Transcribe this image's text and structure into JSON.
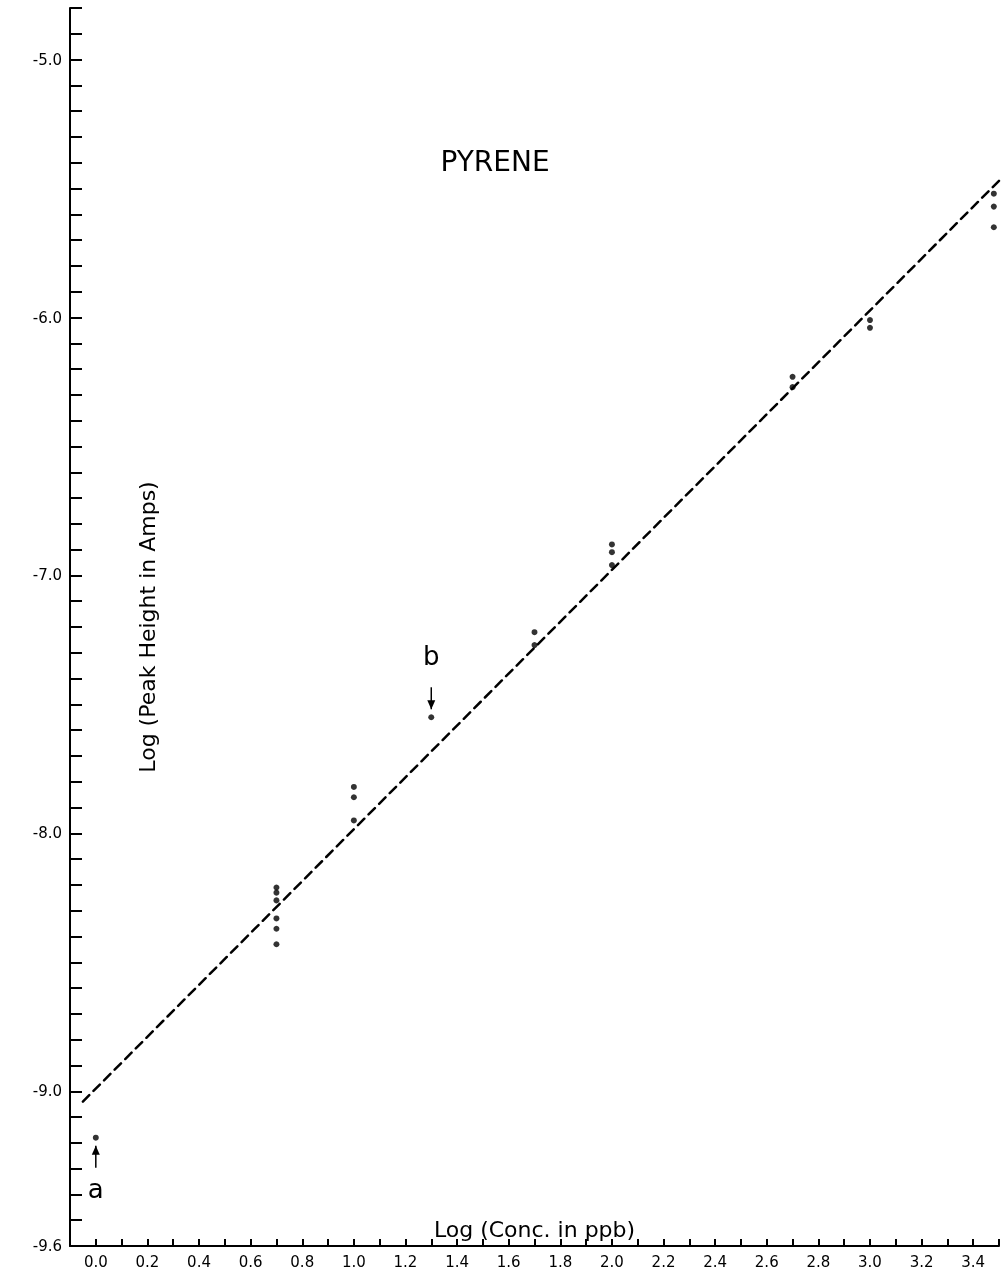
{
  "chart_data": {
    "type": "scatter",
    "title": "PYRENE",
    "xlabel": "Log (Conc. in ppb)",
    "ylabel": "Log (Peak Height in Amps)",
    "xlim": [
      -0.1,
      3.5
    ],
    "ylim": [
      -9.6,
      -4.8
    ],
    "xticks": [
      {
        "value": 0,
        "label": "0.0"
      },
      {
        "value": 0.1,
        "label": null
      },
      {
        "value": 0.2,
        "label": "0.2"
      },
      {
        "value": 0.3,
        "label": null
      },
      {
        "value": 0.4,
        "label": "0.4"
      },
      {
        "value": 0.5,
        "label": null
      },
      {
        "value": 0.6,
        "label": "0.6"
      },
      {
        "value": 0.7,
        "label": null
      },
      {
        "value": 0.8,
        "label": "0.8"
      },
      {
        "value": 0.9,
        "label": null
      },
      {
        "value": 1,
        "label": "1.0"
      },
      {
        "value": 1.1,
        "label": null
      },
      {
        "value": 1.2,
        "label": "1.2"
      },
      {
        "value": 1.3,
        "label": null
      },
      {
        "value": 1.4,
        "label": "1.4"
      },
      {
        "value": 1.5,
        "label": null
      },
      {
        "value": 1.6,
        "label": "1.6"
      },
      {
        "value": 1.7,
        "label": null
      },
      {
        "value": 1.8,
        "label": "1.8"
      },
      {
        "value": 1.9,
        "label": null
      },
      {
        "value": 2,
        "label": "2.0"
      },
      {
        "value": 2.1,
        "label": null
      },
      {
        "value": 2.2,
        "label": "2.2"
      },
      {
        "value": 2.3,
        "label": null
      },
      {
        "value": 2.4,
        "label": "2.4"
      },
      {
        "value": 2.5,
        "label": null
      },
      {
        "value": 2.6,
        "label": "2.6"
      },
      {
        "value": 2.7,
        "label": null
      },
      {
        "value": 2.8,
        "label": "2.8"
      },
      {
        "value": 2.9,
        "label": null
      },
      {
        "value": 3,
        "label": "3.0"
      },
      {
        "value": 3.1,
        "label": null
      },
      {
        "value": 3.2,
        "label": "3.2"
      },
      {
        "value": 3.3,
        "label": null
      },
      {
        "value": 3.4,
        "label": "3.4"
      },
      {
        "value": 3.5,
        "label": null
      }
    ],
    "yticks": [
      {
        "value": -9.6,
        "label": "-9.6"
      },
      {
        "value": -9.5,
        "label": null
      },
      {
        "value": -9.4,
        "label": null
      },
      {
        "value": -9.3,
        "label": null
      },
      {
        "value": -9.2,
        "label": null
      },
      {
        "value": -9.1,
        "label": null
      },
      {
        "value": -9,
        "label": "-9.0"
      },
      {
        "value": -8.9,
        "label": null
      },
      {
        "value": -8.8,
        "label": null
      },
      {
        "value": -8.7,
        "label": null
      },
      {
        "value": -8.6,
        "label": null
      },
      {
        "value": -8.5,
        "label": null
      },
      {
        "value": -8.4,
        "label": null
      },
      {
        "value": -8.3,
        "label": null
      },
      {
        "value": -8.2,
        "label": null
      },
      {
        "value": -8.1,
        "label": null
      },
      {
        "value": -8,
        "label": "-8.0"
      },
      {
        "value": -7.9,
        "label": null
      },
      {
        "value": -7.8,
        "label": null
      },
      {
        "value": -7.7,
        "label": null
      },
      {
        "value": -7.6,
        "label": null
      },
      {
        "value": -7.5,
        "label": null
      },
      {
        "value": -7.4,
        "label": null
      },
      {
        "value": -7.3,
        "label": null
      },
      {
        "value": -7.2,
        "label": null
      },
      {
        "value": -7.1,
        "label": null
      },
      {
        "value": -7,
        "label": "-7.0"
      },
      {
        "value": -6.9,
        "label": null
      },
      {
        "value": -6.8,
        "label": null
      },
      {
        "value": -6.7,
        "label": null
      },
      {
        "value": -6.6,
        "label": null
      },
      {
        "value": -6.5,
        "label": null
      },
      {
        "value": -6.4,
        "label": null
      },
      {
        "value": -6.3,
        "label": null
      },
      {
        "value": -6.2,
        "label": null
      },
      {
        "value": -6.1,
        "label": null
      },
      {
        "value": -6,
        "label": "-6.0"
      },
      {
        "value": -5.9,
        "label": null
      },
      {
        "value": -5.8,
        "label": null
      },
      {
        "value": -5.7,
        "label": null
      },
      {
        "value": -5.6,
        "label": null
      },
      {
        "value": -5.5,
        "label": null
      },
      {
        "value": -5.4,
        "label": null
      },
      {
        "value": -5.3,
        "label": null
      },
      {
        "value": -5.2,
        "label": null
      },
      {
        "value": -5.1,
        "label": null
      },
      {
        "value": -5,
        "label": "-5.0"
      },
      {
        "value": -4.9,
        "label": null
      },
      {
        "value": -4.8,
        "label": null
      }
    ],
    "grid": false,
    "marker": "circle",
    "series": [
      {
        "color": "#000000",
        "x": [
          0,
          0.7,
          0.7,
          0.7,
          0.7,
          0.7,
          0.7,
          1,
          1,
          1,
          1.3,
          1.7,
          1.7,
          2,
          2,
          2,
          2.7,
          2.7,
          3,
          3,
          3.48,
          3.48,
          3.48
        ],
        "values": [
          -9.18,
          -8.21,
          -8.23,
          -8.26,
          -8.33,
          -8.37,
          -8.43,
          -7.82,
          -7.86,
          -7.95,
          -7.55,
          -7.22,
          -7.27,
          -6.88,
          -6.91,
          -6.96,
          -6.23,
          -6.27,
          -6.01,
          -6.04,
          -5.52,
          -5.57,
          -5.65
        ]
      },
      {
        "type": "line",
        "color": "#000000",
        "marker": "none",
        "line_style": "dashed",
        "x": [
          -0.05,
          3.5
        ],
        "values": [
          -9.04,
          -5.47
        ]
      }
    ],
    "annotations": [
      {
        "text": "a",
        "x": 0,
        "y": -9.18
      },
      {
        "text": "b",
        "x": 1.3,
        "y": -7.55
      }
    ]
  }
}
